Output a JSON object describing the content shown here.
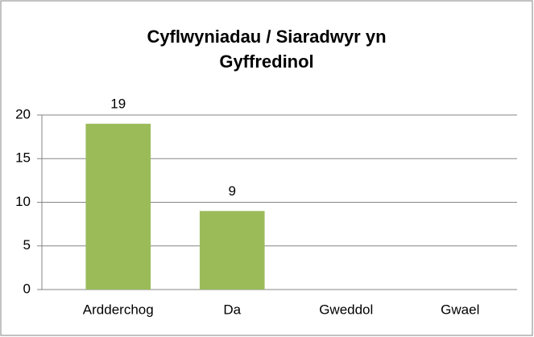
{
  "chart_data": {
    "type": "bar",
    "title": "Cyflwyniadau / Siaradwyr yn Gyffredinol",
    "categories": [
      "Ardderchog",
      "Da",
      "Gweddol",
      "Gwael"
    ],
    "values": [
      19,
      9,
      0,
      0
    ],
    "value_labels": [
      "19",
      "9",
      null,
      null
    ],
    "color": "#9bbb59",
    "ylim": [
      0,
      20
    ],
    "yticks": [
      0,
      5,
      10,
      15,
      20
    ],
    "grid": true
  }
}
